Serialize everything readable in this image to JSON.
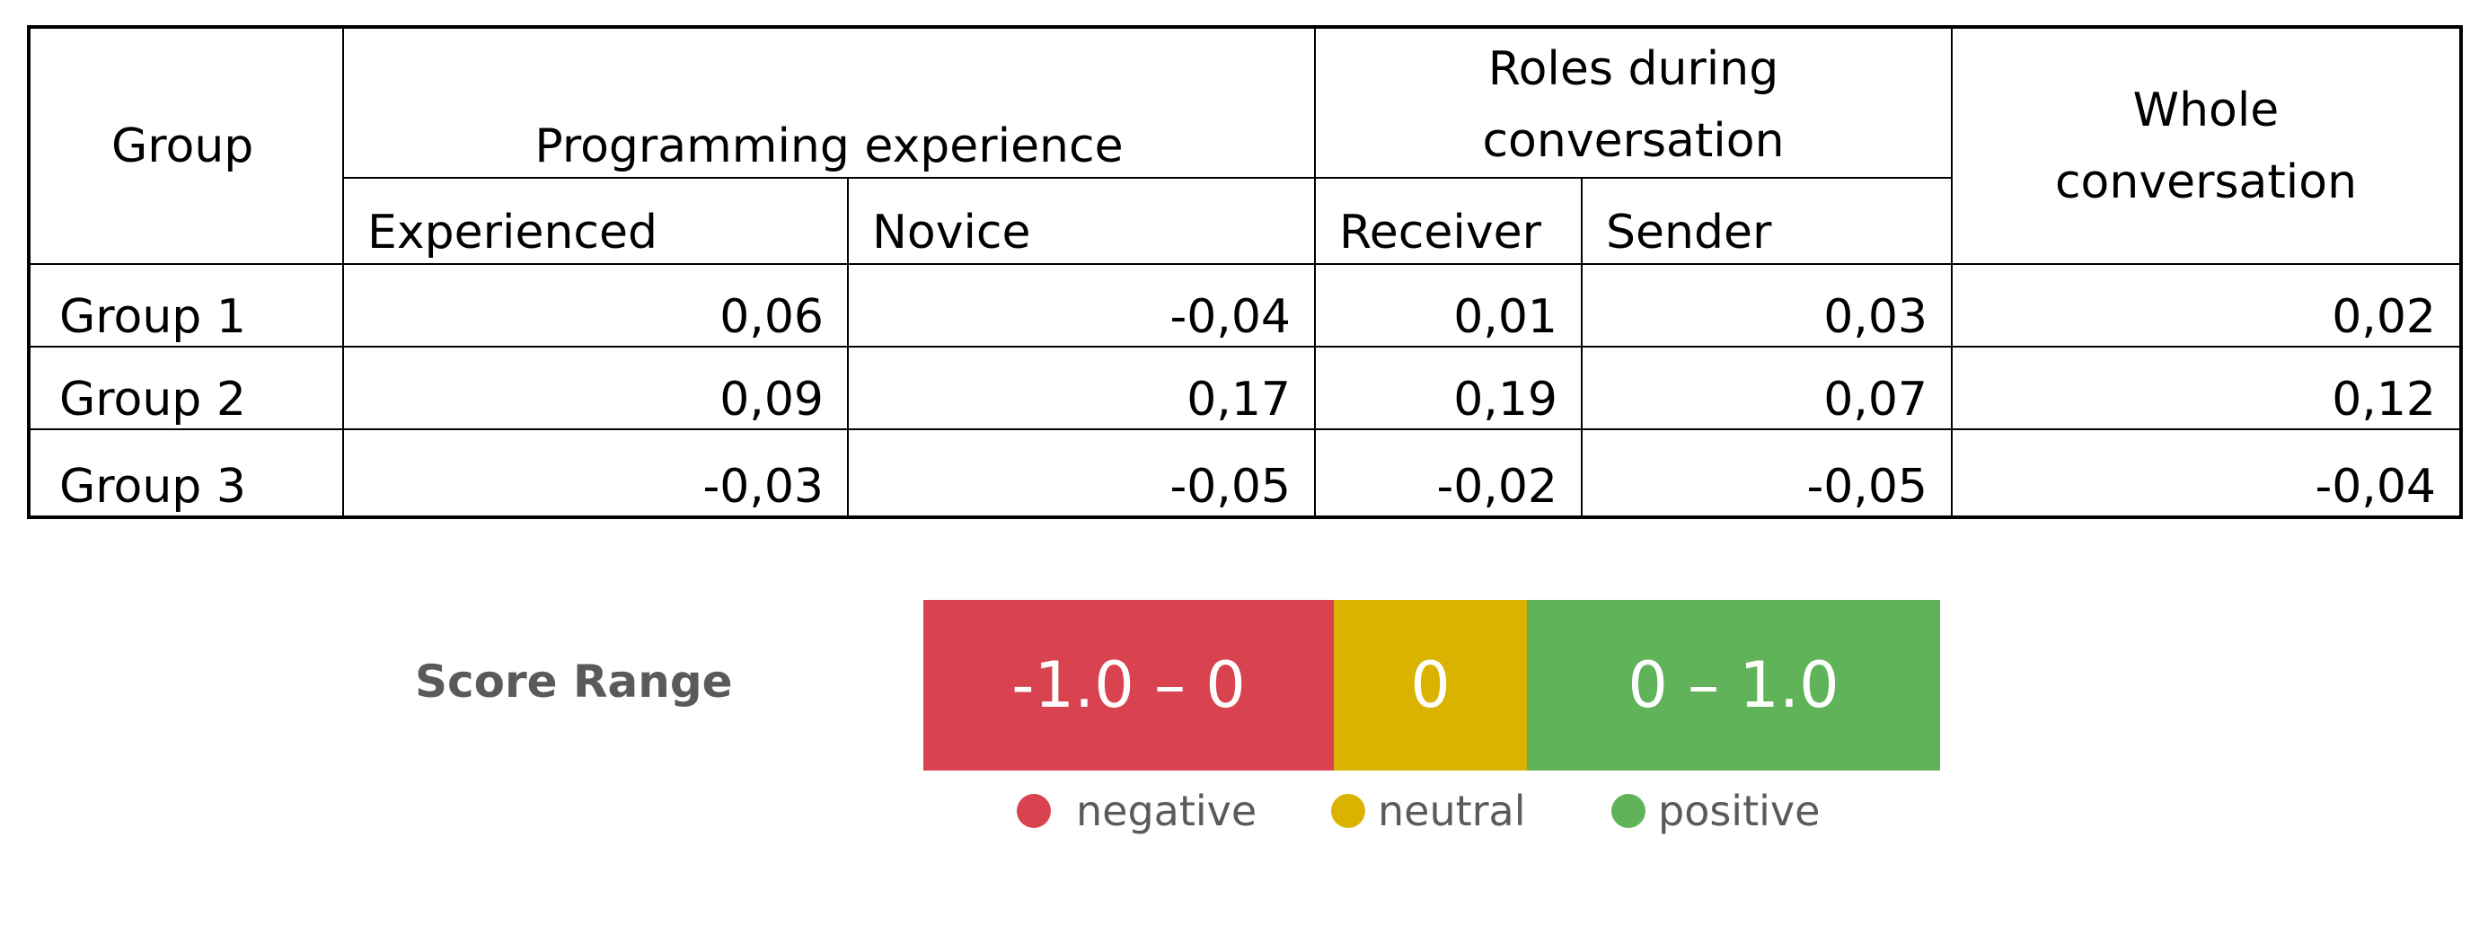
{
  "table": {
    "headers": {
      "group": "Group",
      "programming_experience": "Programming experience",
      "roles": "Roles during conversation",
      "whole": "Whole conversation",
      "experienced": "Experienced",
      "novice": "Novice",
      "receiver": "Receiver",
      "sender": "Sender"
    },
    "rows": [
      {
        "label": "Group 1",
        "experienced": "0,06",
        "novice": "-0,04",
        "receiver": "0,01",
        "sender": "0,03",
        "whole": "0,02"
      },
      {
        "label": "Group 2",
        "experienced": "0,09",
        "novice": "0,17",
        "receiver": "0,19",
        "sender": "0,07",
        "whole": "0,12"
      },
      {
        "label": "Group 3",
        "experienced": "-0,03",
        "novice": "-0,05",
        "receiver": "-0,02",
        "sender": "-0,05",
        "whole": "-0,04"
      }
    ]
  },
  "score_range": {
    "title": "Score Range",
    "segments": [
      {
        "label": "-1.0 – 0",
        "color": "#d9434f"
      },
      {
        "label": "0",
        "color": "#d9b300"
      },
      {
        "label": "0 – 1.0",
        "color": "#61b35a"
      }
    ],
    "legend": [
      {
        "label": "negative",
        "color": "#d9434f"
      },
      {
        "label": "neutral",
        "color": "#d9b300"
      },
      {
        "label": "positive",
        "color": "#61b35a"
      }
    ]
  }
}
